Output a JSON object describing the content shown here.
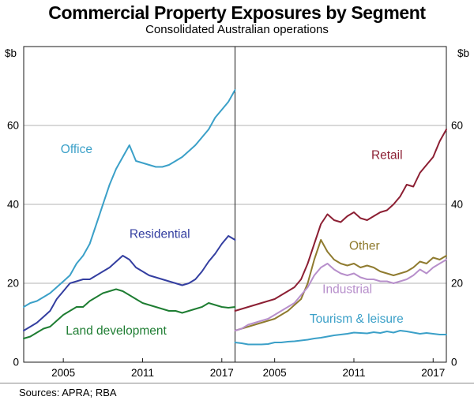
{
  "chart_data": {
    "type": "line",
    "title": "Commercial Property Exposures by Segment",
    "subtitle": "Consolidated Australian operations",
    "unit": "$b",
    "xlim": [
      2002,
      2018
    ],
    "ylim": [
      0,
      80
    ],
    "x_start": 2002,
    "x_step": 0.5,
    "xticks": [
      2005,
      2011,
      2017
    ],
    "yticks": [
      0,
      20,
      40,
      60
    ],
    "grid": true,
    "legend_position": "inline-labels",
    "colors": {
      "grid": "#b3b3b3",
      "frame": "#1a1a1a",
      "text": "#000000"
    },
    "panels": [
      {
        "name": "left",
        "series": [
          {
            "name": "Office",
            "color": "#3BA0C8",
            "label_x": 2006,
            "label_y": 53,
            "values": [
              14,
              15,
              15.5,
              16.5,
              17.5,
              19,
              20.5,
              22,
              25,
              27,
              30,
              35,
              40,
              45,
              49,
              52,
              55,
              51,
              50.5,
              50,
              49.5,
              49.5,
              50,
              51,
              52,
              53.5,
              55,
              57,
              59,
              62,
              64,
              66,
              69
            ]
          },
          {
            "name": "Residential",
            "color": "#333EA0",
            "label_x": 2012.3,
            "label_y": 31.5,
            "values": [
              8,
              9,
              10,
              11.5,
              13,
              16,
              18,
              20,
              20.5,
              21,
              21,
              22,
              23,
              24,
              25.5,
              27,
              26,
              24,
              23,
              22,
              21.5,
              21,
              20.5,
              20,
              19.5,
              20,
              21,
              23,
              25.5,
              27.5,
              30,
              32,
              31
            ]
          },
          {
            "name": "Land development",
            "color": "#1E7D32",
            "label_x": 2009,
            "label_y": 7,
            "values": [
              6,
              6.5,
              7.5,
              8.5,
              9,
              10.5,
              12,
              13,
              14,
              14,
              15.5,
              16.5,
              17.5,
              18,
              18.5,
              18,
              17,
              16,
              15,
              14.5,
              14,
              13.5,
              13,
              13,
              12.5,
              13,
              13.5,
              14,
              15,
              14.5,
              14,
              13.8,
              14
            ]
          }
        ]
      },
      {
        "name": "right",
        "series": [
          {
            "name": "Retail",
            "color": "#8C1F33",
            "label_x": 2013.5,
            "label_y": 51.5,
            "values": [
              13,
              13.5,
              14,
              14.5,
              15,
              15.5,
              16,
              17,
              18,
              19,
              21,
              25,
              30,
              35,
              37.5,
              36,
              35.5,
              37,
              38,
              36.5,
              36,
              37,
              38,
              38.5,
              40,
              42,
              45,
              44.5,
              48,
              50,
              52,
              56,
              59
            ]
          },
          {
            "name": "Other",
            "color": "#8F7B2F",
            "label_x": 2011.8,
            "label_y": 28.5,
            "values": [
              8,
              8.5,
              9,
              9.5,
              10,
              10.5,
              11,
              12,
              13,
              14.5,
              16,
              20,
              26,
              31,
              28,
              26,
              25,
              24.5,
              25,
              24,
              24.5,
              24,
              23,
              22.5,
              22,
              22.5,
              23,
              24,
              25.5,
              25,
              26.5,
              26,
              27
            ]
          },
          {
            "name": "Industrial",
            "color": "#B78FCB",
            "label_x": 2010.5,
            "label_y": 17.5,
            "values": [
              8,
              8.5,
              9.5,
              10,
              10.5,
              11,
              12,
              13,
              14,
              15,
              17,
              19,
              22,
              24,
              25,
              23.5,
              22.5,
              22,
              22.5,
              21.5,
              21,
              21,
              20.5,
              20.5,
              20,
              20.5,
              21,
              22,
              23.5,
              22.5,
              24,
              25,
              26
            ]
          },
          {
            "name": "Tourism & leisure",
            "color": "#3BA0C8",
            "label_x": 2011.2,
            "label_y": 10,
            "values": [
              5,
              4.8,
              4.5,
              4.5,
              4.5,
              4.6,
              5,
              5,
              5.2,
              5.3,
              5.5,
              5.7,
              6,
              6.2,
              6.5,
              6.8,
              7,
              7.2,
              7.5,
              7.4,
              7.3,
              7.6,
              7.4,
              7.8,
              7.5,
              8,
              7.8,
              7.5,
              7.2,
              7.4,
              7.2,
              7,
              7
            ]
          }
        ]
      }
    ]
  },
  "footer": {
    "sources": "Sources: APRA; RBA"
  }
}
